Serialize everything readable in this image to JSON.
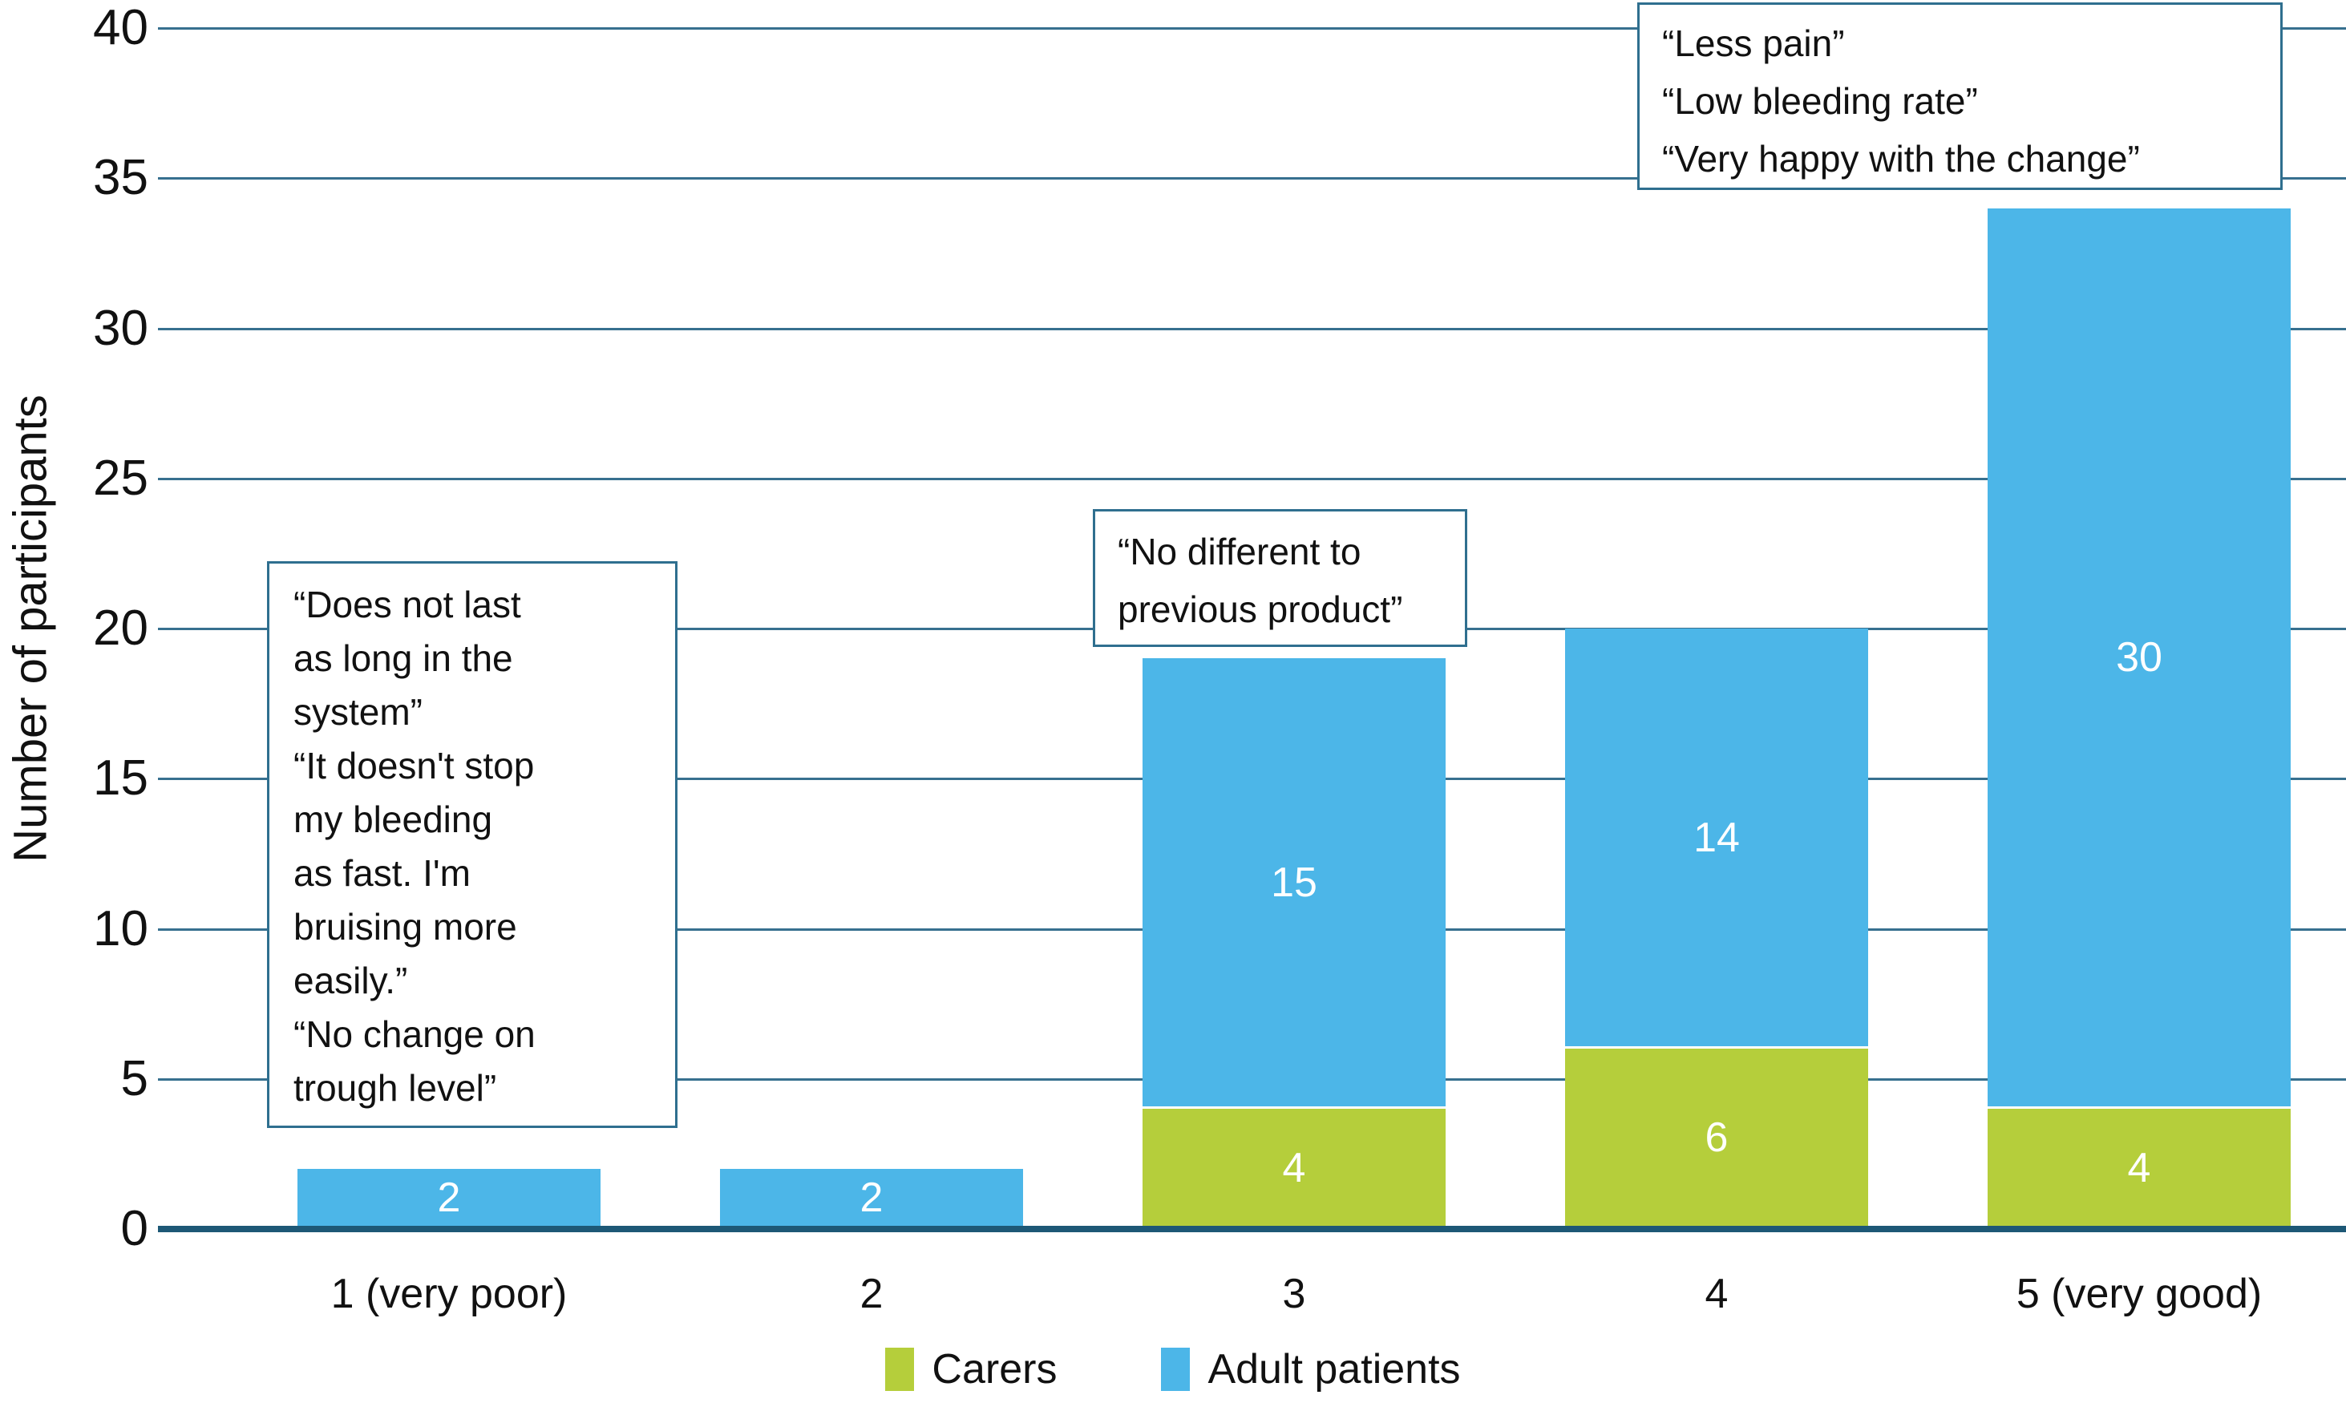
{
  "chart_data": {
    "type": "bar",
    "stacked": true,
    "categories": [
      "1 (very poor)",
      "2",
      "3",
      "4",
      "5 (very good)"
    ],
    "series": [
      {
        "name": "Carers",
        "color": "#b5ce3b",
        "values": [
          0,
          0,
          4,
          6,
          4
        ]
      },
      {
        "name": "Adult patients",
        "color": "#4cb6e8",
        "values": [
          2,
          2,
          15,
          14,
          30
        ]
      }
    ],
    "bar_totals": [
      2,
      2,
      19,
      20,
      34
    ],
    "ylabel": "Number of participants",
    "xlabel": "",
    "ylim": [
      0,
      40
    ],
    "yticks": [
      0,
      5,
      10,
      15,
      20,
      25,
      30,
      35,
      40
    ],
    "grid": true,
    "gridline_color": "#37708f",
    "axis_line_color": "#1d5876",
    "legend_position": "bottom",
    "value_label_color": "#ffffff",
    "annotations": [
      {
        "id": "negative-quotes",
        "near_category": "1 (very poor)",
        "lines": [
          "“Does not last",
          "as long in the",
          "system”",
          "“It doesn't stop",
          "my bleeding",
          "as fast. I'm",
          "bruising more",
          "easily.”",
          "“No change on",
          "trough level”"
        ]
      },
      {
        "id": "neutral-quote",
        "near_category": "3",
        "lines": [
          "“No different to",
          "previous product”"
        ]
      },
      {
        "id": "positive-quotes",
        "near_category": "5 (very good)",
        "lines": [
          "“Less pain”",
          "“Low bleeding rate”",
          "“Very happy with the change”"
        ]
      }
    ]
  }
}
